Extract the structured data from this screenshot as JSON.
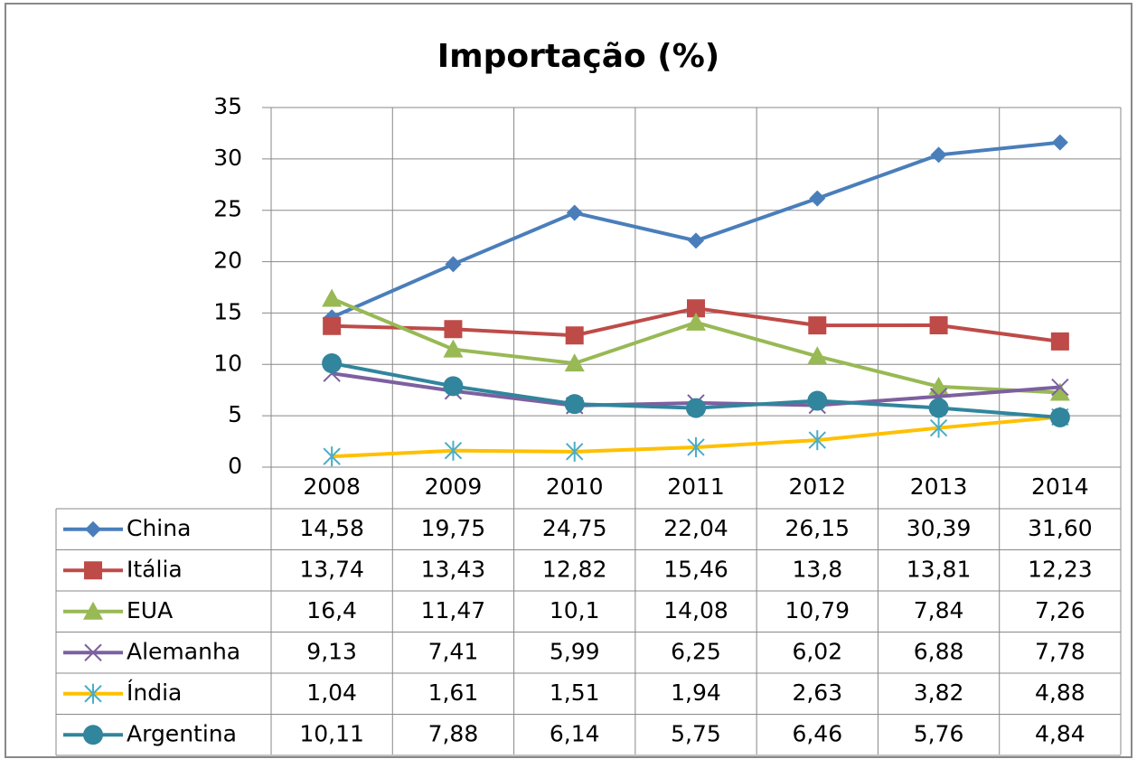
{
  "chart_data": {
    "type": "line",
    "title": "Importação (%)",
    "categories": [
      "2008",
      "2009",
      "2010",
      "2011",
      "2012",
      "2013",
      "2014"
    ],
    "ylim": [
      0,
      35
    ],
    "yticks": [
      0,
      5,
      10,
      15,
      20,
      25,
      30,
      35
    ],
    "grid": true,
    "data_table": true,
    "series": [
      {
        "name": "China",
        "color": "#4a7ebb",
        "marker": "diamond",
        "values": [
          14.58,
          19.75,
          24.75,
          22.04,
          26.15,
          30.39,
          31.6
        ],
        "value_labels": [
          "14,58",
          "19,75",
          "24,75",
          "22,04",
          "26,15",
          "30,39",
          "31,60"
        ]
      },
      {
        "name": "Itália",
        "color": "#be4b48",
        "marker": "square",
        "values": [
          13.74,
          13.43,
          12.82,
          15.46,
          13.8,
          13.81,
          12.23
        ],
        "value_labels": [
          "13,74",
          "13,43",
          "12,82",
          "15,46",
          "13,8",
          "13,81",
          "12,23"
        ]
      },
      {
        "name": "EUA",
        "color": "#98b954",
        "marker": "triangle",
        "values": [
          16.4,
          11.47,
          10.1,
          14.08,
          10.79,
          7.84,
          7.26
        ],
        "value_labels": [
          "16,4",
          "11,47",
          "10,1",
          "14,08",
          "10,79",
          "7,84",
          "7,26"
        ]
      },
      {
        "name": "Alemanha",
        "color": "#7d60a0",
        "marker": "x",
        "values": [
          9.13,
          7.41,
          5.99,
          6.25,
          6.02,
          6.88,
          7.78
        ],
        "value_labels": [
          "9,13",
          "7,41",
          "5,99",
          "6,25",
          "6,02",
          "6,88",
          "7,78"
        ]
      },
      {
        "name": "Índia",
        "color": "#ffc000",
        "marker": "star",
        "marker_color": "#4bacc6",
        "values": [
          1.04,
          1.61,
          1.51,
          1.94,
          2.63,
          3.82,
          4.88
        ],
        "value_labels": [
          "1,04",
          "1,61",
          "1,51",
          "1,94",
          "2,63",
          "3,82",
          "4,88"
        ]
      },
      {
        "name": "Argentina",
        "color": "#31859c",
        "marker": "circle",
        "values": [
          10.11,
          7.88,
          6.14,
          5.75,
          6.46,
          5.76,
          4.84
        ],
        "value_labels": [
          "10,11",
          "7,88",
          "6,14",
          "5,75",
          "6,46",
          "5,76",
          "4,84"
        ]
      }
    ]
  }
}
